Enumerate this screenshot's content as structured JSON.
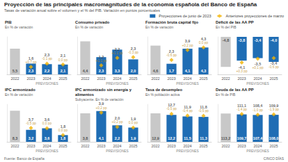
{
  "title": "Proyección de las principales macromagnitudes de la economía española del Banco de España",
  "subtitle": "Tasas de variación anual sobre el volumen y el % del PIB. Variación en puntos porcentuales",
  "source": "Fuente: Banco de España",
  "credit": "CINCO DÍAS",
  "chart_data": [
    {
      "type": "bar",
      "title": "PIB",
      "subtitle": "En % de variación",
      "categories": [
        "2022",
        "2023",
        "2024",
        "2025"
      ],
      "annotation": "PREVISIONES",
      "ylim": [
        0,
        8
      ],
      "tick_labels": "x",
      "grid": false,
      "data_labels": true,
      "series": [
        {
          "name": "Proyecciones de junio de 2023",
          "type": "bar",
          "color": "#1f6db4",
          "colors": [
            "#c8c8c8",
            "#1f6db4",
            "#1f6db4",
            "#1f6db4"
          ],
          "values": [
            5.5,
            2.3,
            2.2,
            2.1
          ],
          "value_labels": [
            "5,5",
            "2,3",
            "2,2",
            "2,1"
          ]
        },
        {
          "name": "Anteriores proyecciones de marzo",
          "type": "scatter",
          "marker": "diamond",
          "color": "#f2b300",
          "values": [
            null,
            1.6,
            2.3,
            2.1
          ],
          "value_labels": [
            null,
            "1,6",
            "2,3",
            "2,1"
          ],
          "changes": [
            null,
            0.7,
            -0.1,
            0.0
          ],
          "change_labels": [
            null,
            "+0,7 pp",
            "-0,1 pp",
            "0,0 pp"
          ]
        }
      ]
    },
    {
      "type": "bar",
      "title": "Consumo privado",
      "subtitle": "En % de variación",
      "categories": [
        "2022",
        "2023",
        "2024",
        "2025"
      ],
      "annotation": "PREVISIONES",
      "ylim": [
        0,
        5
      ],
      "tick_labels": "x",
      "grid": false,
      "data_labels": true,
      "series": [
        {
          "name": "Proyecciones de junio de 2023",
          "type": "bar",
          "color": "#1f6db4",
          "colors": [
            "#c8c8c8",
            "#1f6db4",
            "#1f6db4",
            "#1f6db4"
          ],
          "values": [
            4.4,
            2.3,
            3.3,
            2.0
          ],
          "value_labels": [
            "4,4",
            "2,3",
            "3,3",
            "2,0"
          ]
        },
        {
          "name": "Anteriores proyecciones de marzo",
          "type": "scatter",
          "marker": "diamond",
          "color": "#f2b300",
          "values": [
            null,
            1.2,
            2.2,
            2.3
          ],
          "value_labels": [
            null,
            "1,2",
            "2,2",
            "2,3"
          ],
          "changes": [
            null,
            1.1,
            1.1,
            -0.3
          ],
          "change_labels": [
            null,
            "+1,1 pp",
            "+1,1 pp",
            "-0,3 pp"
          ]
        }
      ]
    },
    {
      "type": "bar",
      "title": "Formación bruta capital fijo",
      "subtitle": "En % de variación",
      "categories": [
        "2022",
        "2023",
        "2024",
        "2025"
      ],
      "annotation": "PREVISIONES",
      "ylim": [
        0,
        6
      ],
      "tick_labels": "x",
      "grid": false,
      "data_labels": true,
      "series": [
        {
          "name": "Proyecciones de junio de 2023",
          "type": "bar",
          "color": "#1f6db4",
          "colors": [
            "#c8c8c8",
            "#1f6db4",
            "#1f6db4",
            "#1f6db4"
          ],
          "values": [
            4.6,
            1.7,
            4.1,
            4.3
          ],
          "value_labels": [
            "4,6",
            "1,7",
            "4,1",
            "4,3"
          ]
        },
        {
          "name": "Anteriores proyecciones de marzo",
          "type": "scatter",
          "marker": "diamond",
          "color": "#f2b300",
          "values": [
            null,
            2.3,
            3.9,
            4.3
          ],
          "value_labels": [
            null,
            "2,3",
            "3,9",
            "4,3"
          ],
          "changes": [
            null,
            -0.6,
            0.2,
            0.0
          ],
          "change_labels": [
            null,
            "-0,6 pp",
            "+0,2 pp",
            "0,0 pp"
          ]
        }
      ]
    },
    {
      "type": "bar",
      "title": "Déficit de las AA PP",
      "subtitle": "En % del PIB",
      "categories": [
        "2022",
        "2023",
        "2024",
        "2025"
      ],
      "annotation": "PREVISIONES",
      "ylim": [
        -6,
        0
      ],
      "tick_labels": "x",
      "grid": false,
      "data_labels": true,
      "series": [
        {
          "name": "Proyecciones de junio de 2023",
          "type": "bar",
          "color": "#1f6db4",
          "colors": [
            "#c8c8c8",
            "#1f6db4",
            "#1f6db4",
            "#1f6db4"
          ],
          "values": [
            -4.8,
            -3.8,
            -3.4,
            -4.0
          ],
          "value_labels": [
            "-4,8",
            "-3,8",
            "-3,4",
            "-4,0"
          ]
        },
        {
          "name": "Anteriores proyecciones de marzo",
          "type": "scatter",
          "marker": "diamond",
          "color": "#f2b300",
          "values": [
            null,
            -4.1,
            -3.5,
            -3.4
          ],
          "value_labels": [
            null,
            "-4,1",
            "-3,5",
            "-3,4"
          ],
          "changes": [
            null,
            0.3,
            0.1,
            -0.6
          ],
          "change_labels": [
            null,
            "+0,3 pp",
            "+0,1 pp",
            "-0,6 pp"
          ]
        }
      ]
    },
    {
      "type": "bar",
      "title": "IPC armonizado",
      "subtitle": "En % de variación",
      "categories": [
        "2022",
        "2023",
        "2024",
        "2025"
      ],
      "annotation": "PREVISIONES",
      "ylim": [
        0,
        10
      ],
      "tick_labels": "x",
      "grid": false,
      "data_labels": true,
      "series": [
        {
          "name": "Proyecciones de junio de 2023",
          "type": "bar",
          "color": "#1f6db4",
          "colors": [
            "#c8c8c8",
            "#1f6db4",
            "#1f6db4",
            "#1f6db4"
          ],
          "values": [
            8.3,
            3.2,
            3.6,
            1.8
          ],
          "value_labels": [
            "8,3",
            "3,2",
            "3,6",
            "1,8"
          ]
        },
        {
          "name": "Anteriores proyecciones de marzo",
          "type": "scatter",
          "marker": "diamond",
          "color": "#f2b300",
          "values": [
            null,
            3.7,
            3.6,
            1.8
          ],
          "value_labels": [
            null,
            "3,7",
            "3,6",
            "1,8"
          ],
          "changes": [
            null,
            -0.5,
            0.0,
            0.0
          ],
          "change_labels": [
            null,
            "-0,5 pp",
            "0,0 pp",
            "0,0 pp"
          ]
        }
      ]
    },
    {
      "type": "bar",
      "title": "IPC armonizado sin energía y alimentos",
      "subtitle": "Subyacente. En % de variación",
      "categories": [
        "2022",
        "2023",
        "2024",
        "2025"
      ],
      "annotation": "PREVISIONES",
      "ylim": [
        0,
        5
      ],
      "tick_labels": "x",
      "grid": false,
      "data_labels": true,
      "series": [
        {
          "name": "Proyecciones de junio de 2023",
          "type": "bar",
          "color": "#1f6db4",
          "colors": [
            "#c8c8c8",
            "#1f6db4",
            "#1f6db4",
            "#1f6db4"
          ],
          "values": [
            3.8,
            4.1,
            2.2,
            1.9
          ],
          "value_labels": [
            "3,8",
            "4,1",
            "2,2",
            "1,9"
          ]
        },
        {
          "name": "Anteriores proyecciones de marzo",
          "type": "scatter",
          "marker": "diamond",
          "color": "#f2b300",
          "values": [
            null,
            3.9,
            2.0,
            1.9
          ],
          "value_labels": [
            null,
            "3,9",
            "2,0",
            "1,9"
          ],
          "changes": [
            null,
            0.2,
            0.2,
            0.0
          ],
          "change_labels": [
            null,
            "+0,2 pp",
            "+0,2 pp",
            "0,0 pp"
          ]
        }
      ]
    },
    {
      "type": "bar",
      "title": "Tasa de desempleo",
      "subtitle": "En % población activa",
      "categories": [
        "2022",
        "2023",
        "2024",
        "2025"
      ],
      "annotation": "PREVISIONES",
      "ylim": [
        0,
        17
      ],
      "tick_labels": "x",
      "grid": false,
      "data_labels": true,
      "series": [
        {
          "name": "Proyecciones de junio de 2023",
          "type": "bar",
          "color": "#1f6db4",
          "colors": [
            "#c8c8c8",
            "#1f6db4",
            "#1f6db4",
            "#1f6db4"
          ],
          "values": [
            12.9,
            12.2,
            11.5,
            11.3
          ],
          "value_labels": [
            "12,9",
            "12,2",
            "11,5",
            "11,3"
          ]
        },
        {
          "name": "Anteriores proyecciones de marzo",
          "type": "scatter",
          "marker": "diamond",
          "color": "#f2b300",
          "values": [
            null,
            12.7,
            11.9,
            11.8
          ],
          "value_labels": [
            null,
            "12,7",
            "11,9",
            "11,8"
          ],
          "changes": [
            null,
            -0.5,
            -0.4,
            -0.5
          ],
          "change_labels": [
            null,
            "-0,5 pp",
            "-0,4 pp",
            "-0,5 pp"
          ]
        }
      ]
    },
    {
      "type": "bar",
      "title": "Deuda de las AA PP",
      "subtitle": "En % de PIB",
      "categories": [
        "2022",
        "2023",
        "2024",
        "2025"
      ],
      "annotation": "PREVISIONES",
      "ylim": [
        0,
        150
      ],
      "tick_labels": "x",
      "grid": false,
      "data_labels": true,
      "series": [
        {
          "name": "Proyecciones de junio de 2023",
          "type": "bar",
          "color": "#1f6db4",
          "colors": [
            "#c8c8c8",
            "#1f6db4",
            "#1f6db4",
            "#1f6db4"
          ],
          "values": [
            113.2,
            109.7,
            107.4,
            108.0
          ],
          "value_labels": [
            "113,2",
            "109,7",
            "107,4",
            "108,0"
          ]
        },
        {
          "name": "Anteriores proyecciones de marzo",
          "type": "scatter",
          "marker": "diamond",
          "color": "#f2b300",
          "values": [
            null,
            111.1,
            108.4,
            109.9
          ],
          "value_labels": [
            null,
            "111,1",
            "108,4",
            "109,9"
          ],
          "changes": [
            null,
            -1.4,
            -1.0,
            -1.9
          ],
          "change_labels": [
            null,
            "-1,4 pp",
            "-1,0 pp",
            "-1,9 pp"
          ]
        }
      ]
    }
  ]
}
